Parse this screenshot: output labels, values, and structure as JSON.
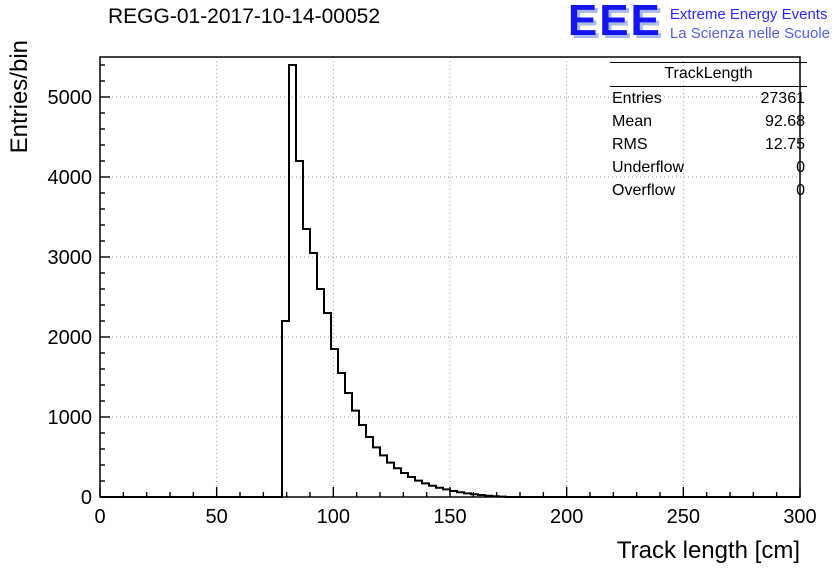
{
  "title": "REGG-01-2017-10-14-00052",
  "logo": {
    "text": "EEE",
    "line1": "Extreme Energy Events",
    "line2": "La Scienza nelle Scuole",
    "color": "#1515f0",
    "shadow": "#a9b9ea",
    "line1_color": "#2b2bff",
    "line2_color": "#5560e0"
  },
  "stats": {
    "header": "TrackLength",
    "rows": [
      {
        "label": "Entries",
        "value": "27361"
      },
      {
        "label": "Mean",
        "value": "92.68"
      },
      {
        "label": "RMS",
        "value": "12.75"
      },
      {
        "label": "Underflow",
        "value": "0"
      },
      {
        "label": "Overflow",
        "value": "0"
      }
    ]
  },
  "axes": {
    "xlabel": "Track length [cm]",
    "ylabel": "Entries/bin"
  },
  "chart_data": {
    "type": "bar",
    "title": "REGG-01-2017-10-14-00052",
    "xlabel": "Track length [cm]",
    "ylabel": "Entries/bin",
    "xlim": [
      0,
      300
    ],
    "ylim": [
      0,
      5500
    ],
    "xticks": [
      0,
      50,
      100,
      150,
      200,
      250,
      300
    ],
    "yticks": [
      0,
      1000,
      2000,
      3000,
      4000,
      5000
    ],
    "minor_x_step": 10,
    "minor_y_step": 200,
    "grid": true,
    "legend": false,
    "bin_start": 78,
    "bin_width": 3,
    "values": [
      2200,
      5400,
      4200,
      3350,
      3050,
      2600,
      2300,
      1850,
      1550,
      1300,
      1080,
      900,
      750,
      620,
      520,
      430,
      360,
      300,
      250,
      205,
      170,
      140,
      115,
      95,
      75,
      60,
      45,
      35,
      25,
      15,
      10,
      5
    ],
    "stats": {
      "entries": 27361,
      "mean": 92.68,
      "rms": 12.75,
      "underflow": 0,
      "overflow": 0
    }
  }
}
